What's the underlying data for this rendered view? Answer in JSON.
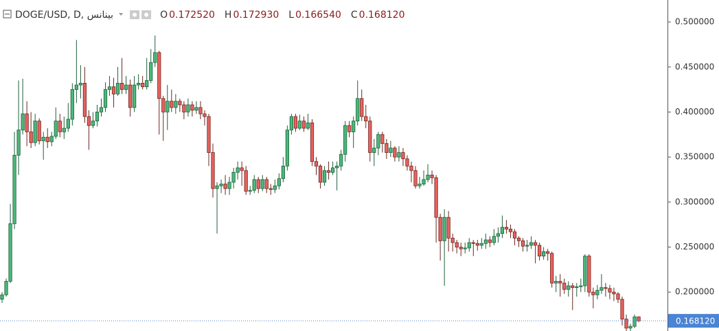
{
  "chart_data": {
    "type": "candlestick",
    "header": {
      "symbol": "DOGE/USD, D, بينانس",
      "ohlc": [
        {
          "label": "O",
          "value": "0.172520"
        },
        {
          "label": "H",
          "value": "0.172930"
        },
        {
          "label": "L",
          "value": "0.166540"
        },
        {
          "label": "C",
          "value": "0.168120"
        }
      ]
    },
    "up_color": "#4bb87a",
    "up_border": "#1f5e3b",
    "down_color": "#e8625c",
    "down_border": "#6b2420",
    "ylim": [
      0.1568,
      0.5244
    ],
    "yticks": [
      {
        "value": 0.2,
        "label": "0.200000"
      },
      {
        "value": 0.25,
        "label": "0.250000"
      },
      {
        "value": 0.3,
        "label": "0.300000"
      },
      {
        "value": 0.35,
        "label": "0.350000"
      },
      {
        "value": 0.4,
        "label": "0.400000"
      },
      {
        "value": 0.45,
        "label": "0.450000"
      },
      {
        "value": 0.5,
        "label": "0.500000"
      }
    ],
    "last_price": {
      "value": 0.16812,
      "label": "0.168120"
    },
    "open": [
      0.192,
      0.197,
      0.212,
      0.276,
      0.352,
      0.38,
      0.398,
      0.378,
      0.366,
      0.39,
      0.368,
      0.372,
      0.367,
      0.373,
      0.39,
      0.378,
      0.382,
      0.392,
      0.425,
      0.43,
      0.432,
      0.395,
      0.385,
      0.39,
      0.4,
      0.405,
      0.425,
      0.428,
      0.42,
      0.432,
      0.425,
      0.43,
      0.405,
      0.43,
      0.432,
      0.428,
      0.435,
      0.455,
      0.466,
      0.415,
      0.4,
      0.412,
      0.405,
      0.412,
      0.408,
      0.4,
      0.408,
      0.402,
      0.405,
      0.398,
      0.395,
      0.355,
      0.315,
      0.318,
      0.32,
      0.315,
      0.322,
      0.333,
      0.338,
      0.335,
      0.312,
      0.313,
      0.325,
      0.315,
      0.325,
      0.315,
      0.314,
      0.318,
      0.326,
      0.34,
      0.38,
      0.395,
      0.382,
      0.39,
      0.382,
      0.388,
      0.345,
      0.34,
      0.322,
      0.335,
      0.333,
      0.338,
      0.34,
      0.353,
      0.385,
      0.378,
      0.39,
      0.415,
      0.395,
      0.39,
      0.355,
      0.36,
      0.375,
      0.365,
      0.355,
      0.36,
      0.35,
      0.355,
      0.348,
      0.34,
      0.335,
      0.318,
      0.32,
      0.325,
      0.33,
      0.327,
      0.283,
      0.257,
      0.283,
      0.26,
      0.255,
      0.25,
      0.248,
      0.249,
      0.255,
      0.254,
      0.252,
      0.254,
      0.258,
      0.255,
      0.262,
      0.265,
      0.272,
      0.27,
      0.267,
      0.26,
      0.257,
      0.251,
      0.252,
      0.255,
      0.252,
      0.24,
      0.245,
      0.243,
      0.21,
      0.212,
      0.21,
      0.203,
      0.207,
      0.205,
      0.206,
      0.207,
      0.24,
      0.2,
      0.197,
      0.202,
      0.205,
      0.204,
      0.2,
      0.198,
      0.192,
      0.17,
      0.16,
      0.162,
      0.17252
    ],
    "high": [
      0.2,
      0.215,
      0.298,
      0.378,
      0.435,
      0.437,
      0.412,
      0.4,
      0.398,
      0.393,
      0.378,
      0.382,
      0.378,
      0.405,
      0.398,
      0.395,
      0.41,
      0.432,
      0.48,
      0.452,
      0.45,
      0.402,
      0.4,
      0.408,
      0.415,
      0.433,
      0.44,
      0.438,
      0.45,
      0.46,
      0.44,
      0.436,
      0.44,
      0.442,
      0.44,
      0.46,
      0.47,
      0.485,
      0.468,
      0.418,
      0.43,
      0.425,
      0.42,
      0.415,
      0.412,
      0.415,
      0.412,
      0.412,
      0.412,
      0.402,
      0.398,
      0.365,
      0.322,
      0.325,
      0.33,
      0.328,
      0.338,
      0.345,
      0.345,
      0.34,
      0.318,
      0.33,
      0.328,
      0.33,
      0.328,
      0.32,
      0.325,
      0.332,
      0.35,
      0.385,
      0.398,
      0.398,
      0.397,
      0.395,
      0.398,
      0.392,
      0.35,
      0.342,
      0.34,
      0.345,
      0.345,
      0.345,
      0.358,
      0.39,
      0.39,
      0.395,
      0.435,
      0.425,
      0.408,
      0.395,
      0.37,
      0.378,
      0.378,
      0.37,
      0.368,
      0.362,
      0.362,
      0.36,
      0.352,
      0.345,
      0.34,
      0.328,
      0.335,
      0.342,
      0.335,
      0.33,
      0.287,
      0.292,
      0.29,
      0.265,
      0.258,
      0.255,
      0.255,
      0.26,
      0.258,
      0.258,
      0.26,
      0.265,
      0.262,
      0.27,
      0.272,
      0.285,
      0.28,
      0.275,
      0.27,
      0.262,
      0.26,
      0.258,
      0.262,
      0.258,
      0.255,
      0.25,
      0.248,
      0.245,
      0.218,
      0.22,
      0.215,
      0.212,
      0.21,
      0.21,
      0.215,
      0.242,
      0.242,
      0.205,
      0.208,
      0.22,
      0.21,
      0.208,
      0.205,
      0.2,
      0.195,
      0.175,
      0.165,
      0.175,
      0.17293
    ],
    "low": [
      0.188,
      0.195,
      0.21,
      0.27,
      0.33,
      0.375,
      0.362,
      0.36,
      0.362,
      0.364,
      0.347,
      0.36,
      0.362,
      0.37,
      0.372,
      0.37,
      0.378,
      0.385,
      0.41,
      0.415,
      0.388,
      0.358,
      0.382,
      0.384,
      0.395,
      0.4,
      0.418,
      0.405,
      0.418,
      0.42,
      0.42,
      0.395,
      0.4,
      0.425,
      0.425,
      0.425,
      0.432,
      0.45,
      0.375,
      0.368,
      0.38,
      0.4,
      0.398,
      0.4,
      0.392,
      0.395,
      0.395,
      0.398,
      0.392,
      0.385,
      0.34,
      0.305,
      0.265,
      0.31,
      0.308,
      0.308,
      0.315,
      0.325,
      0.318,
      0.308,
      0.308,
      0.31,
      0.31,
      0.312,
      0.31,
      0.308,
      0.31,
      0.314,
      0.322,
      0.335,
      0.375,
      0.378,
      0.38,
      0.378,
      0.38,
      0.34,
      0.33,
      0.315,
      0.318,
      0.325,
      0.33,
      0.313,
      0.335,
      0.345,
      0.372,
      0.36,
      0.385,
      0.39,
      0.382,
      0.345,
      0.34,
      0.352,
      0.355,
      0.348,
      0.35,
      0.345,
      0.345,
      0.34,
      0.335,
      0.322,
      0.315,
      0.315,
      0.318,
      0.322,
      0.32,
      0.255,
      0.235,
      0.207,
      0.245,
      0.245,
      0.243,
      0.24,
      0.243,
      0.245,
      0.24,
      0.246,
      0.248,
      0.248,
      0.25,
      0.252,
      0.255,
      0.26,
      0.265,
      0.26,
      0.252,
      0.25,
      0.245,
      0.245,
      0.248,
      0.232,
      0.235,
      0.236,
      0.235,
      0.205,
      0.2,
      0.195,
      0.198,
      0.195,
      0.18,
      0.195,
      0.2,
      0.2,
      0.195,
      0.182,
      0.192,
      0.198,
      0.195,
      0.192,
      0.19,
      0.188,
      0.163,
      0.155,
      0.155,
      0.16,
      0.16654
    ],
    "close": [
      0.197,
      0.212,
      0.276,
      0.352,
      0.38,
      0.398,
      0.378,
      0.366,
      0.39,
      0.368,
      0.372,
      0.367,
      0.373,
      0.39,
      0.378,
      0.382,
      0.392,
      0.425,
      0.43,
      0.432,
      0.395,
      0.385,
      0.39,
      0.4,
      0.405,
      0.425,
      0.428,
      0.42,
      0.432,
      0.425,
      0.43,
      0.405,
      0.43,
      0.432,
      0.428,
      0.435,
      0.455,
      0.466,
      0.415,
      0.4,
      0.412,
      0.405,
      0.412,
      0.408,
      0.4,
      0.408,
      0.402,
      0.405,
      0.398,
      0.395,
      0.355,
      0.315,
      0.318,
      0.32,
      0.315,
      0.322,
      0.333,
      0.338,
      0.335,
      0.312,
      0.313,
      0.325,
      0.315,
      0.325,
      0.315,
      0.314,
      0.318,
      0.326,
      0.34,
      0.38,
      0.395,
      0.382,
      0.39,
      0.382,
      0.388,
      0.345,
      0.34,
      0.322,
      0.335,
      0.333,
      0.338,
      0.34,
      0.353,
      0.385,
      0.378,
      0.39,
      0.415,
      0.395,
      0.39,
      0.355,
      0.36,
      0.375,
      0.365,
      0.355,
      0.36,
      0.35,
      0.355,
      0.348,
      0.34,
      0.335,
      0.318,
      0.32,
      0.325,
      0.33,
      0.327,
      0.283,
      0.257,
      0.283,
      0.26,
      0.255,
      0.25,
      0.248,
      0.249,
      0.255,
      0.254,
      0.252,
      0.254,
      0.258,
      0.255,
      0.262,
      0.265,
      0.272,
      0.27,
      0.267,
      0.26,
      0.257,
      0.251,
      0.252,
      0.255,
      0.252,
      0.24,
      0.245,
      0.243,
      0.21,
      0.212,
      0.21,
      0.203,
      0.207,
      0.205,
      0.206,
      0.207,
      0.24,
      0.2,
      0.197,
      0.202,
      0.205,
      0.204,
      0.2,
      0.198,
      0.192,
      0.17,
      0.16,
      0.162,
      0.17252,
      0.16812
    ]
  }
}
